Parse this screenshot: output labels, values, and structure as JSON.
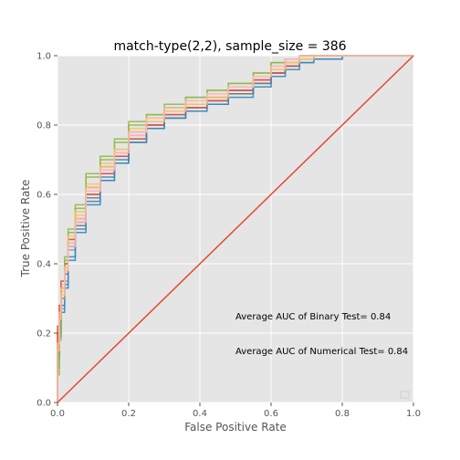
{
  "chart_data": {
    "type": "line",
    "title": "match-type(2,2), sample_size =  386",
    "xlabel": "False Positive Rate",
    "ylabel": "True Positive Rate",
    "xlim": [
      0,
      1
    ],
    "ylim": [
      0,
      1
    ],
    "grid": true,
    "xticks": [
      "0.0",
      "0.2",
      "0.4",
      "0.6",
      "0.8",
      "1.0"
    ],
    "yticks": [
      "0.0",
      "0.2",
      "0.4",
      "0.6",
      "0.8",
      "1.0"
    ],
    "annotations": [
      {
        "text": "Average AUC of Binary Test= 0.84",
        "x": 0.5,
        "y": 0.25
      },
      {
        "text": "Average AUC of Numerical Test= 0.84",
        "x": 0.5,
        "y": 0.15
      }
    ],
    "colors": {
      "background": "#e5e5e5",
      "grid": "#ffffff",
      "diagonal": "#e24a33",
      "series": [
        "#e24a33",
        "#348abd",
        "#988ed5",
        "#777777",
        "#fbc15e",
        "#8eba42",
        "#ffb5b8",
        "#e24a33",
        "#348abd",
        "#8eba42",
        "#fbc15e",
        "#ffb5b8"
      ]
    },
    "diagonal": {
      "x": [
        0,
        1
      ],
      "y": [
        0,
        1
      ]
    },
    "series": [
      {
        "x": [
          0,
          0.005,
          0.01,
          0.02,
          0.03,
          0.05,
          0.08,
          0.12,
          0.16,
          0.2,
          0.25,
          0.3,
          0.36,
          0.42,
          0.48,
          0.55,
          0.6,
          0.64,
          0.68,
          0.72,
          0.8,
          0.9,
          1.0
        ],
        "y": [
          0,
          0.2,
          0.26,
          0.33,
          0.4,
          0.46,
          0.53,
          0.62,
          0.68,
          0.72,
          0.78,
          0.81,
          0.84,
          0.86,
          0.88,
          0.9,
          0.93,
          0.96,
          0.98,
          0.99,
          1.0,
          1.0,
          1.0
        ]
      },
      {
        "x": [
          0,
          0.005,
          0.01,
          0.02,
          0.03,
          0.05,
          0.08,
          0.12,
          0.16,
          0.2,
          0.25,
          0.3,
          0.36,
          0.42,
          0.48,
          0.55,
          0.6,
          0.64,
          0.68,
          0.72,
          0.8,
          0.9,
          1.0
        ],
        "y": [
          0,
          0.14,
          0.21,
          0.28,
          0.34,
          0.42,
          0.5,
          0.58,
          0.65,
          0.7,
          0.76,
          0.8,
          0.82,
          0.85,
          0.87,
          0.89,
          0.92,
          0.95,
          0.97,
          0.98,
          0.99,
          1.0,
          1.0
        ]
      },
      {
        "x": [
          0,
          0.005,
          0.01,
          0.02,
          0.03,
          0.05,
          0.08,
          0.12,
          0.16,
          0.2,
          0.25,
          0.3,
          0.36,
          0.42,
          0.48,
          0.55,
          0.6,
          0.64,
          0.68,
          0.72,
          0.8,
          0.9,
          1.0
        ],
        "y": [
          0,
          0.12,
          0.2,
          0.27,
          0.35,
          0.44,
          0.52,
          0.6,
          0.66,
          0.71,
          0.77,
          0.8,
          0.83,
          0.85,
          0.87,
          0.9,
          0.93,
          0.96,
          0.98,
          0.99,
          1.0,
          1.0,
          1.0
        ]
      },
      {
        "x": [
          0,
          0.005,
          0.01,
          0.02,
          0.03,
          0.05,
          0.08,
          0.12,
          0.16,
          0.2,
          0.25,
          0.3,
          0.36,
          0.42,
          0.48,
          0.55,
          0.6,
          0.64,
          0.68,
          0.72,
          0.8,
          0.9,
          1.0
        ],
        "y": [
          0,
          0.16,
          0.23,
          0.3,
          0.37,
          0.45,
          0.51,
          0.59,
          0.64,
          0.69,
          0.75,
          0.79,
          0.82,
          0.84,
          0.86,
          0.89,
          0.92,
          0.95,
          0.97,
          0.99,
          1.0,
          1.0,
          1.0
        ]
      },
      {
        "x": [
          0,
          0.005,
          0.01,
          0.02,
          0.03,
          0.05,
          0.08,
          0.12,
          0.16,
          0.2,
          0.25,
          0.3,
          0.36,
          0.42,
          0.48,
          0.55,
          0.6,
          0.64,
          0.68,
          0.72,
          0.8,
          0.9,
          1.0
        ],
        "y": [
          0,
          0.18,
          0.25,
          0.32,
          0.39,
          0.47,
          0.54,
          0.63,
          0.69,
          0.73,
          0.79,
          0.82,
          0.85,
          0.87,
          0.89,
          0.91,
          0.94,
          0.97,
          0.99,
          1.0,
          1.0,
          1.0,
          1.0
        ]
      },
      {
        "x": [
          0,
          0.005,
          0.01,
          0.02,
          0.03,
          0.05,
          0.08,
          0.12,
          0.16,
          0.2,
          0.25,
          0.3,
          0.36,
          0.42,
          0.48,
          0.55,
          0.6,
          0.64,
          0.68,
          0.72,
          0.8,
          0.9,
          1.0
        ],
        "y": [
          0,
          0.1,
          0.22,
          0.31,
          0.41,
          0.49,
          0.56,
          0.65,
          0.7,
          0.75,
          0.8,
          0.83,
          0.85,
          0.88,
          0.9,
          0.92,
          0.95,
          0.98,
          0.99,
          1.0,
          1.0,
          1.0,
          1.0
        ]
      },
      {
        "x": [
          0,
          0.005,
          0.01,
          0.02,
          0.03,
          0.05,
          0.08,
          0.12,
          0.16,
          0.2,
          0.25,
          0.3,
          0.36,
          0.42,
          0.48,
          0.55,
          0.6,
          0.64,
          0.68,
          0.72,
          0.8,
          0.9,
          1.0
        ],
        "y": [
          0,
          0.19,
          0.27,
          0.34,
          0.38,
          0.46,
          0.53,
          0.61,
          0.67,
          0.72,
          0.77,
          0.81,
          0.84,
          0.86,
          0.89,
          0.91,
          0.93,
          0.96,
          0.98,
          0.99,
          1.0,
          1.0,
          1.0
        ]
      },
      {
        "x": [
          0,
          0.005,
          0.01,
          0.02,
          0.03,
          0.05,
          0.08,
          0.12,
          0.16,
          0.2,
          0.25,
          0.3,
          0.36,
          0.42,
          0.48,
          0.55,
          0.6,
          0.64,
          0.68,
          0.72,
          0.8,
          0.9,
          1.0
        ],
        "y": [
          0,
          0.22,
          0.28,
          0.35,
          0.4,
          0.47,
          0.52,
          0.6,
          0.66,
          0.71,
          0.76,
          0.8,
          0.83,
          0.85,
          0.87,
          0.9,
          0.93,
          0.95,
          0.97,
          0.99,
          1.0,
          1.0,
          1.0
        ]
      },
      {
        "x": [
          0,
          0.005,
          0.01,
          0.02,
          0.03,
          0.05,
          0.08,
          0.12,
          0.16,
          0.2,
          0.25,
          0.3,
          0.36,
          0.42,
          0.48,
          0.55,
          0.6,
          0.64,
          0.68,
          0.72,
          0.8,
          0.9,
          1.0
        ],
        "y": [
          0,
          0.13,
          0.19,
          0.26,
          0.33,
          0.41,
          0.49,
          0.57,
          0.64,
          0.69,
          0.75,
          0.79,
          0.82,
          0.84,
          0.86,
          0.88,
          0.91,
          0.94,
          0.96,
          0.98,
          0.99,
          1.0,
          1.0
        ]
      },
      {
        "x": [
          0,
          0.005,
          0.01,
          0.02,
          0.03,
          0.05,
          0.08,
          0.12,
          0.16,
          0.2,
          0.25,
          0.3,
          0.36,
          0.42,
          0.48,
          0.55,
          0.6,
          0.64,
          0.68,
          0.72,
          0.8,
          0.9,
          1.0
        ],
        "y": [
          0,
          0.08,
          0.18,
          0.3,
          0.42,
          0.5,
          0.57,
          0.66,
          0.71,
          0.76,
          0.81,
          0.83,
          0.86,
          0.88,
          0.9,
          0.92,
          0.95,
          0.98,
          0.99,
          1.0,
          1.0,
          1.0,
          1.0
        ]
      },
      {
        "x": [
          0,
          0.005,
          0.01,
          0.02,
          0.03,
          0.05,
          0.08,
          0.12,
          0.16,
          0.2,
          0.25,
          0.3,
          0.36,
          0.42,
          0.48,
          0.55,
          0.6,
          0.64,
          0.68,
          0.72,
          0.8,
          0.9,
          1.0
        ],
        "y": [
          0,
          0.15,
          0.24,
          0.33,
          0.39,
          0.48,
          0.55,
          0.62,
          0.68,
          0.73,
          0.78,
          0.81,
          0.84,
          0.86,
          0.88,
          0.91,
          0.94,
          0.96,
          0.98,
          0.99,
          1.0,
          1.0,
          1.0
        ]
      },
      {
        "x": [
          0,
          0.005,
          0.01,
          0.02,
          0.03,
          0.05,
          0.08,
          0.12,
          0.16,
          0.2,
          0.25,
          0.3,
          0.36,
          0.42,
          0.48,
          0.55,
          0.6,
          0.64,
          0.68,
          0.72,
          0.8,
          0.9,
          1.0
        ],
        "y": [
          0,
          0.17,
          0.26,
          0.31,
          0.38,
          0.45,
          0.52,
          0.61,
          0.67,
          0.72,
          0.78,
          0.82,
          0.85,
          0.87,
          0.89,
          0.91,
          0.94,
          0.97,
          0.99,
          1.0,
          1.0,
          1.0,
          1.0
        ]
      }
    ]
  }
}
